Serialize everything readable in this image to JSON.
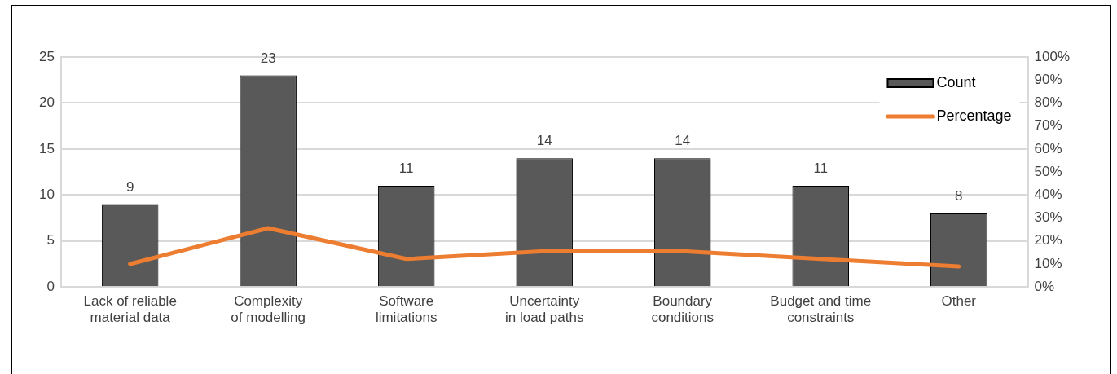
{
  "chart_data": {
    "type": "bar",
    "categories": [
      "Lack of reliable material data",
      "Complexity of modelling",
      "Software limitations",
      "Uncertainty in load paths",
      "Boundary conditions",
      "Budget and time constraints",
      "Other"
    ],
    "series": [
      {
        "name": "Count",
        "color": "#595959",
        "values": [
          9,
          23,
          11,
          14,
          14,
          11,
          8
        ],
        "value_labels": [
          "9",
          "23",
          "11",
          "14",
          "14",
          "11",
          "8"
        ]
      },
      {
        "name": "Percentage",
        "type": "line",
        "axis": "y2",
        "color": "#ed7d31",
        "values": [
          10,
          25.6,
          12.2,
          15.6,
          15.6,
          12.2,
          8.9
        ]
      }
    ],
    "ylim": [
      0,
      25
    ],
    "yticks": [
      0,
      5,
      10,
      15,
      20,
      25
    ],
    "y2lim": [
      0,
      100
    ],
    "y2ticks": [
      {
        "value": 0,
        "label": "0%"
      },
      {
        "value": 10,
        "label": "10%"
      },
      {
        "value": 20,
        "label": "20%"
      },
      {
        "value": 30,
        "label": "30%"
      },
      {
        "value": 40,
        "label": "40%"
      },
      {
        "value": 50,
        "label": "50%"
      },
      {
        "value": 60,
        "label": "60%"
      },
      {
        "value": 70,
        "label": "70%"
      },
      {
        "value": 80,
        "label": "80%"
      },
      {
        "value": 90,
        "label": "90%"
      },
      {
        "value": 100,
        "label": "100%"
      }
    ],
    "grid": "y",
    "legend": "top right",
    "marker": "none",
    "line_style": "solid"
  }
}
